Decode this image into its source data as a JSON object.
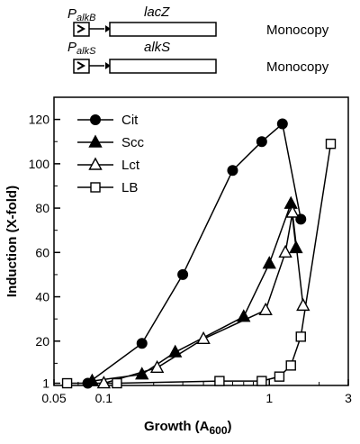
{
  "constructs": [
    {
      "promoter_main": "P",
      "promoter_sub": "alkB",
      "gene": "lacZ",
      "copy": "Monocopy"
    },
    {
      "promoter_main": "P",
      "promoter_sub": "alkS",
      "gene": "alkS",
      "copy": "Monocopy"
    }
  ],
  "chart_data": {
    "type": "line",
    "xlabel_main": "Growth (A",
    "xlabel_sub": "600",
    "xlabel_close": ")",
    "ylabel": "Induction (X-fold)",
    "xscale": "log",
    "xlim": [
      0.05,
      3
    ],
    "ylim": [
      0,
      130
    ],
    "xticks": [
      0.05,
      0.1,
      1,
      3
    ],
    "xtick_labels": [
      "0.05",
      "0.1",
      "1",
      "3"
    ],
    "yticks": [
      1,
      20,
      40,
      60,
      80,
      100,
      120
    ],
    "ytick_labels": [
      "1",
      "20",
      "40",
      "60",
      "80",
      "100",
      "120"
    ],
    "grid": false,
    "legend_position": "top-left",
    "series": [
      {
        "name": "Cit",
        "marker": "filled-circle",
        "x": [
          0.08,
          0.17,
          0.3,
          0.6,
          0.9,
          1.2,
          1.55
        ],
        "y": [
          1,
          19,
          50,
          97,
          110,
          118,
          75
        ]
      },
      {
        "name": "Scc",
        "marker": "filled-triangle",
        "x": [
          0.085,
          0.17,
          0.27,
          0.7,
          1.0,
          1.35,
          1.45
        ],
        "y": [
          2,
          5,
          15,
          31,
          55,
          82,
          62
        ]
      },
      {
        "name": "Lct",
        "marker": "open-triangle",
        "x": [
          0.1,
          0.21,
          0.4,
          0.95,
          1.25,
          1.38,
          1.6
        ],
        "y": [
          1,
          8,
          21,
          34,
          60,
          78,
          36
        ]
      },
      {
        "name": "LB",
        "marker": "open-square",
        "x": [
          0.06,
          0.12,
          0.5,
          0.9,
          1.15,
          1.35,
          1.55,
          2.35
        ],
        "y": [
          1,
          1,
          2,
          2,
          4,
          9,
          22,
          109
        ]
      }
    ]
  }
}
